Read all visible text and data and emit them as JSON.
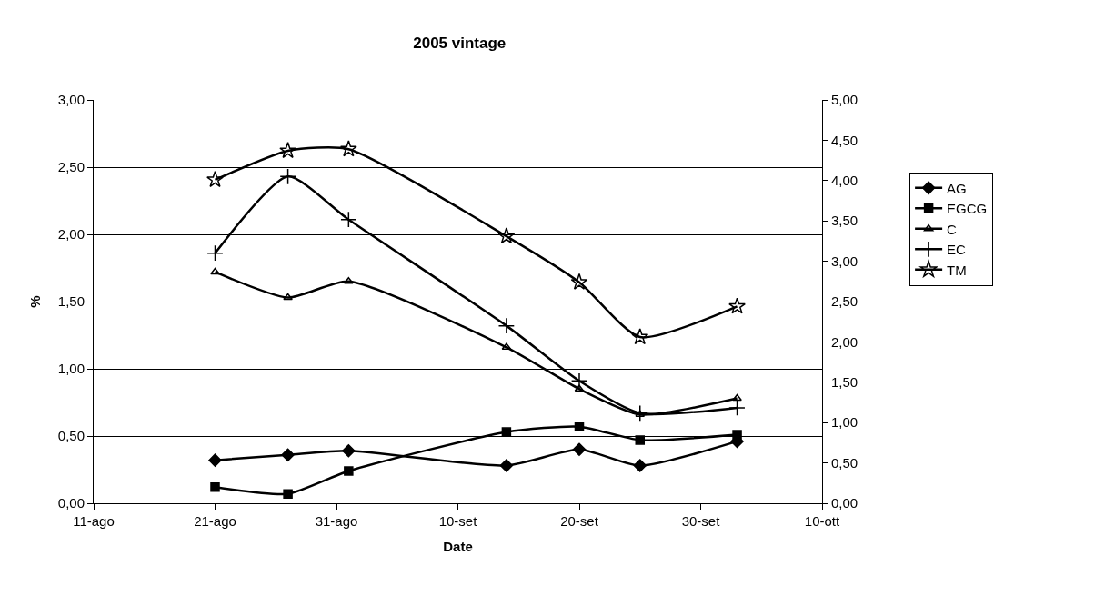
{
  "chart_data": {
    "type": "line",
    "title": "2005 vintage",
    "xlabel": "Date",
    "ylabel": "%",
    "x": [
      "--08-21",
      "--08-27",
      "--09-01",
      "--09-14",
      "--09-20",
      "--09-25",
      "--10-03"
    ],
    "series": [
      {
        "name": "AG",
        "color": "#000000",
        "marker": "diamond",
        "values": [
          0.32,
          0.36,
          0.39,
          0.28,
          0.4,
          0.28,
          0.46
        ]
      },
      {
        "name": "EGCG",
        "color": "#000000",
        "marker": "square",
        "values": [
          0.12,
          0.07,
          0.24,
          0.53,
          0.57,
          0.47,
          0.51
        ]
      },
      {
        "name": "C",
        "color": "#000000",
        "marker": "triangle",
        "values": [
          1.72,
          1.53,
          1.65,
          1.16,
          0.85,
          0.66,
          0.78
        ]
      },
      {
        "name": "EC",
        "color": "#000000",
        "marker": "cross",
        "values": [
          1.86,
          2.43,
          2.11,
          1.32,
          0.91,
          0.67,
          0.71
        ]
      },
      {
        "name": "TM",
        "color": "#000000",
        "marker": "star",
        "axis": "y2",
        "values": [
          4.01,
          4.37,
          4.39,
          3.31,
          2.74,
          2.06,
          2.44
        ]
      }
    ],
    "xlim": [
      "--08-11",
      "--10-10"
    ],
    "xticks": [
      {
        "value": "--08-11",
        "label": "11-ago"
      },
      {
        "value": "--08-21",
        "label": "21-ago"
      },
      {
        "value": "--08-31",
        "label": "31-ago"
      },
      {
        "value": "--09-10",
        "label": "10-set"
      },
      {
        "value": "--09-20",
        "label": "20-set"
      },
      {
        "value": "--09-30",
        "label": "30-set"
      },
      {
        "value": "--10-10",
        "label": "10-ott"
      }
    ],
    "ylim": [
      0,
      3
    ],
    "yticks": [
      {
        "value": 0,
        "label": "0,00"
      },
      {
        "value": 0.5,
        "label": "0,50"
      },
      {
        "value": 1,
        "label": "1,00"
      },
      {
        "value": 1.5,
        "label": "1,50"
      },
      {
        "value": 2,
        "label": "2,00"
      },
      {
        "value": 2.5,
        "label": "2,50"
      },
      {
        "value": 3,
        "label": "3,00"
      }
    ],
    "y2lim": [
      0,
      5
    ],
    "y2ticks": [
      {
        "value": 0,
        "label": "0,00"
      },
      {
        "value": 0.5,
        "label": "0,50"
      },
      {
        "value": 1,
        "label": "1,00"
      },
      {
        "value": 1.5,
        "label": "1,50"
      },
      {
        "value": 2,
        "label": "2,00"
      },
      {
        "value": 2.5,
        "label": "2,50"
      },
      {
        "value": 3,
        "label": "3,00"
      },
      {
        "value": 3.5,
        "label": "3,50"
      },
      {
        "value": 4,
        "label": "4,00"
      },
      {
        "value": 4.5,
        "label": "4,50"
      },
      {
        "value": 5,
        "label": "5,00"
      }
    ],
    "grid": "y",
    "legend": "right"
  }
}
